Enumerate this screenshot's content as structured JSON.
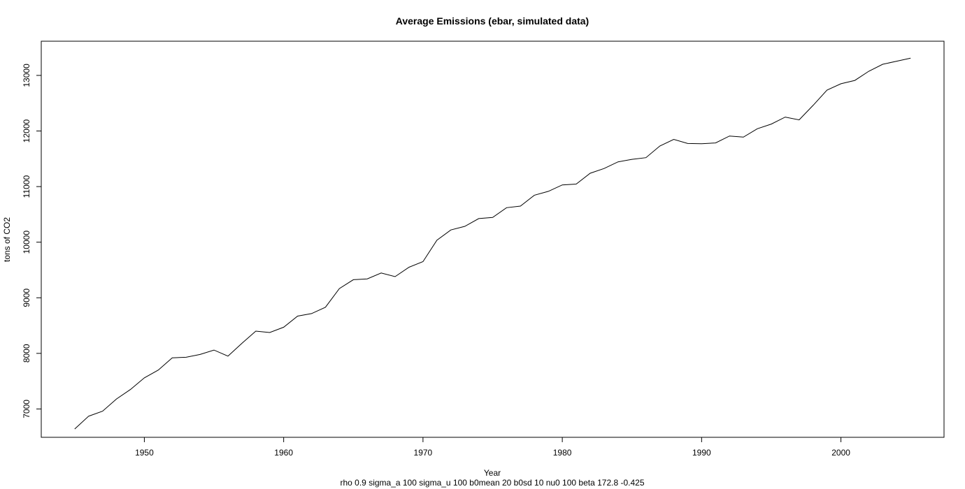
{
  "chart_data": {
    "type": "line",
    "title": "Average Emissions (ebar, simulated data)",
    "xlabel": "Year",
    "ylabel": "tons of CO2",
    "subtitle": "rho 0.9 sigma_a 100 sigma_u 100 b0mean 20 b0sd 10 nu0 100 beta 172.8 -0.425",
    "xlim": [
      1942.6,
      2007.4
    ],
    "ylim": [
      6490,
      13615
    ],
    "xticks": [
      1950,
      1960,
      1970,
      1980,
      1990,
      2000
    ],
    "yticks": [
      7000,
      8000,
      9000,
      10000,
      11000,
      12000,
      13000
    ],
    "grid": false,
    "series": [
      {
        "x": [
          1945,
          1946,
          1947,
          1948,
          1949,
          1950,
          1951,
          1952,
          1953,
          1954,
          1955,
          1956,
          1957,
          1958,
          1959,
          1960,
          1961,
          1962,
          1963,
          1964,
          1965,
          1966,
          1967,
          1968,
          1969,
          1970,
          1971,
          1972,
          1973,
          1974,
          1975,
          1976,
          1977,
          1978,
          1979,
          1980,
          1981,
          1982,
          1983,
          1984,
          1985,
          1986,
          1987,
          1988,
          1989,
          1990,
          1991,
          1992,
          1993,
          1994,
          1995,
          1996,
          1997,
          1998,
          1999,
          2000,
          2001,
          2002,
          2003,
          2004,
          2005
        ],
        "values": [
          6640,
          6870,
          6960,
          7180,
          7350,
          7560,
          7700,
          7920,
          7930,
          7980,
          8060,
          7950,
          8180,
          8400,
          8375,
          8470,
          8670,
          8715,
          8830,
          9165,
          9325,
          9340,
          9445,
          9380,
          9550,
          9650,
          10035,
          10220,
          10285,
          10425,
          10445,
          10620,
          10650,
          10845,
          10915,
          11030,
          11045,
          11240,
          11325,
          11445,
          11490,
          11520,
          11730,
          11850,
          11775,
          11770,
          11785,
          11910,
          11890,
          12040,
          12125,
          12250,
          12200,
          12460,
          12735,
          12850,
          12910,
          13075,
          13200,
          13255,
          13310
        ]
      }
    ]
  }
}
